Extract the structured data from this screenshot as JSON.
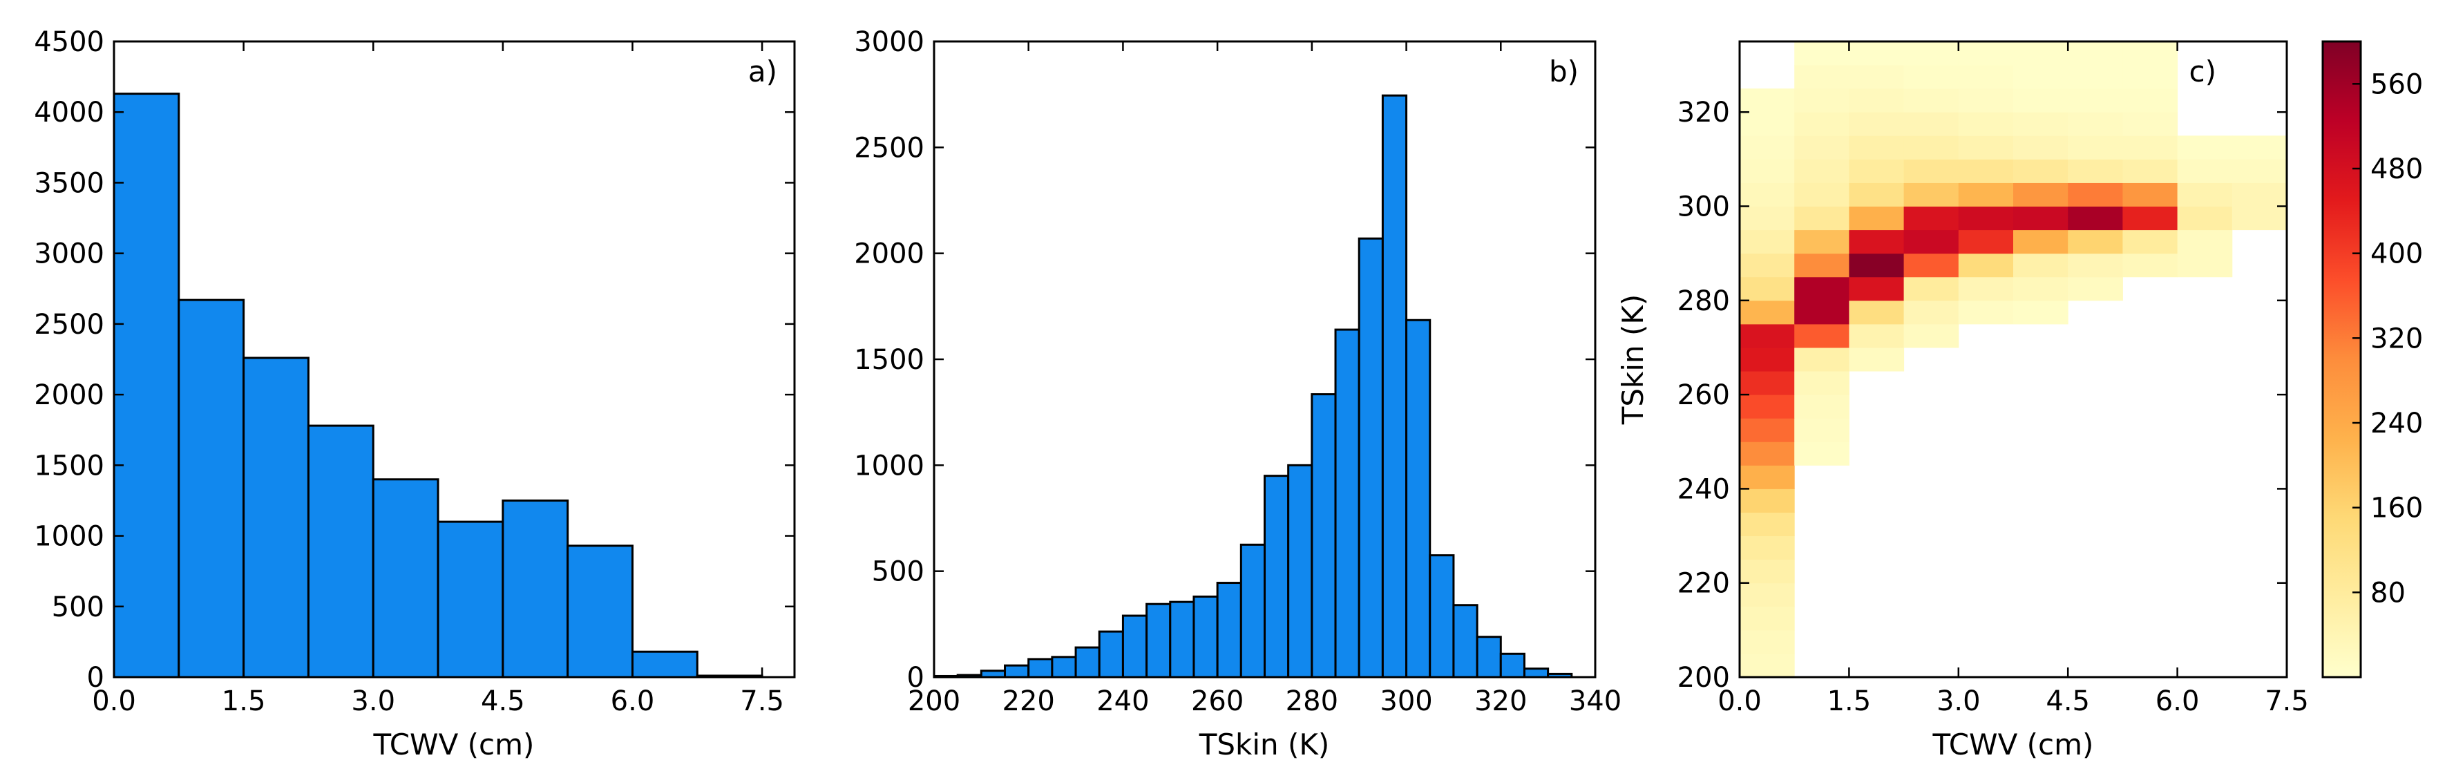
{
  "colors": {
    "bar_fill": "#1188ee",
    "bar_edge": "#000000",
    "colormap": [
      "#ffffcc",
      "#ffeda0",
      "#fed976",
      "#feb24c",
      "#fd8d3c",
      "#fc4e2a",
      "#e31a1c",
      "#bd0026",
      "#800026"
    ]
  },
  "chart_data": [
    {
      "type": "bar",
      "panel": "a)",
      "xlabel": "TCWV (cm)",
      "ylabel": "",
      "xlim": [
        0,
        7.875
      ],
      "ylim": [
        0,
        4500
      ],
      "xticks": [
        "0.0",
        "1.5",
        "3.0",
        "4.5",
        "6.0",
        "7.5"
      ],
      "yticks": [
        "0",
        "500",
        "1000",
        "1500",
        "2000",
        "2500",
        "3000",
        "3500",
        "4000",
        "4500"
      ],
      "bin_edges": [
        0,
        0.75,
        1.5,
        2.25,
        3.0,
        3.75,
        4.5,
        5.25,
        6.0,
        6.75,
        7.5
      ],
      "values": [
        4130,
        2670,
        2260,
        1780,
        1400,
        1100,
        1250,
        930,
        180,
        10
      ]
    },
    {
      "type": "bar",
      "panel": "b)",
      "xlabel": "TSkin (K)",
      "ylabel": "",
      "xlim": [
        200,
        340
      ],
      "ylim": [
        0,
        3000
      ],
      "xticks": [
        "200",
        "220",
        "240",
        "260",
        "280",
        "300",
        "320",
        "340"
      ],
      "yticks": [
        "0",
        "500",
        "1000",
        "1500",
        "2000",
        "2500",
        "3000"
      ],
      "bin_edges": [
        200,
        205,
        210,
        215,
        220,
        225,
        230,
        235,
        240,
        245,
        250,
        255,
        260,
        265,
        270,
        275,
        280,
        285,
        290,
        295,
        300,
        305,
        310,
        315,
        320,
        325,
        330,
        335
      ],
      "values": [
        5,
        10,
        30,
        55,
        85,
        95,
        140,
        215,
        290,
        345,
        355,
        380,
        445,
        625,
        950,
        1000,
        1335,
        1640,
        2070,
        2745,
        1685,
        575,
        340,
        190,
        110,
        40,
        15
      ]
    },
    {
      "type": "heatmap",
      "panel": "c)",
      "xlabel": "TCWV (cm)",
      "ylabel": "TSkin (K)",
      "xlim": [
        0,
        7.5
      ],
      "ylim": [
        200,
        335
      ],
      "xticks": [
        "0.0",
        "1.5",
        "3.0",
        "4.5",
        "6.0",
        "7.5"
      ],
      "yticks": [
        "200",
        "220",
        "240",
        "260",
        "280",
        "300",
        "320"
      ],
      "x_bin_edges": [
        0,
        0.75,
        1.5,
        2.25,
        3.0,
        3.75,
        4.5,
        5.25,
        6.0,
        6.75,
        7.5
      ],
      "y_bin_edges": [
        200,
        205,
        210,
        215,
        220,
        225,
        230,
        235,
        240,
        245,
        250,
        255,
        260,
        265,
        270,
        275,
        280,
        285,
        290,
        295,
        300,
        305,
        310,
        315,
        320,
        325,
        330,
        335
      ],
      "value_range": [
        0,
        600
      ],
      "colorbar_ticks": [
        "80",
        "160",
        "240",
        "320",
        "400",
        "480",
        "560"
      ],
      "colorbar_tick_values": [
        80,
        160,
        240,
        320,
        400,
        480,
        560
      ],
      "values": [
        [
          20,
          0,
          0,
          0,
          0,
          0,
          0,
          0,
          0,
          0
        ],
        [
          25,
          0,
          0,
          0,
          0,
          0,
          0,
          0,
          0,
          0
        ],
        [
          35,
          0,
          0,
          0,
          0,
          0,
          0,
          0,
          0,
          0
        ],
        [
          45,
          0,
          0,
          0,
          0,
          0,
          0,
          0,
          0,
          0
        ],
        [
          60,
          0,
          0,
          0,
          0,
          0,
          0,
          0,
          0,
          0
        ],
        [
          80,
          0,
          0,
          0,
          0,
          0,
          0,
          0,
          0,
          0
        ],
        [
          110,
          0,
          0,
          0,
          0,
          0,
          0,
          0,
          0,
          0
        ],
        [
          160,
          0,
          0,
          0,
          0,
          0,
          0,
          0,
          0,
          0
        ],
        [
          230,
          0,
          0,
          0,
          0,
          0,
          0,
          0,
          0,
          0
        ],
        [
          300,
          10,
          0,
          0,
          0,
          0,
          0,
          0,
          0,
          0
        ],
        [
          340,
          15,
          0,
          0,
          0,
          0,
          0,
          0,
          0,
          0
        ],
        [
          380,
          20,
          0,
          0,
          0,
          0,
          0,
          0,
          0,
          0
        ],
        [
          420,
          30,
          0,
          0,
          0,
          0,
          0,
          0,
          0,
          0
        ],
        [
          460,
          60,
          20,
          0,
          0,
          0,
          0,
          0,
          0,
          0
        ],
        [
          470,
          360,
          50,
          20,
          0,
          0,
          0,
          0,
          0,
          0
        ],
        [
          220,
          540,
          130,
          40,
          15,
          10,
          0,
          0,
          0,
          0
        ],
        [
          120,
          540,
          470,
          80,
          40,
          30,
          20,
          0,
          0,
          0
        ],
        [
          90,
          300,
          590,
          360,
          140,
          60,
          40,
          30,
          20,
          0
        ],
        [
          60,
          200,
          470,
          500,
          420,
          230,
          160,
          80,
          20,
          0
        ],
        [
          40,
          90,
          230,
          470,
          490,
          500,
          550,
          440,
          70,
          40
        ],
        [
          30,
          60,
          120,
          180,
          220,
          280,
          320,
          280,
          50,
          40
        ],
        [
          20,
          50,
          80,
          100,
          100,
          90,
          70,
          60,
          20,
          20
        ],
        [
          15,
          40,
          60,
          60,
          50,
          40,
          30,
          30,
          10,
          10
        ],
        [
          10,
          30,
          40,
          40,
          30,
          25,
          20,
          15,
          0,
          0
        ],
        [
          10,
          20,
          25,
          20,
          15,
          10,
          10,
          10,
          0,
          0
        ],
        [
          0,
          15,
          15,
          10,
          10,
          5,
          5,
          5,
          0,
          0
        ],
        [
          0,
          5,
          5,
          5,
          5,
          5,
          5,
          5,
          0,
          0
        ]
      ]
    }
  ]
}
